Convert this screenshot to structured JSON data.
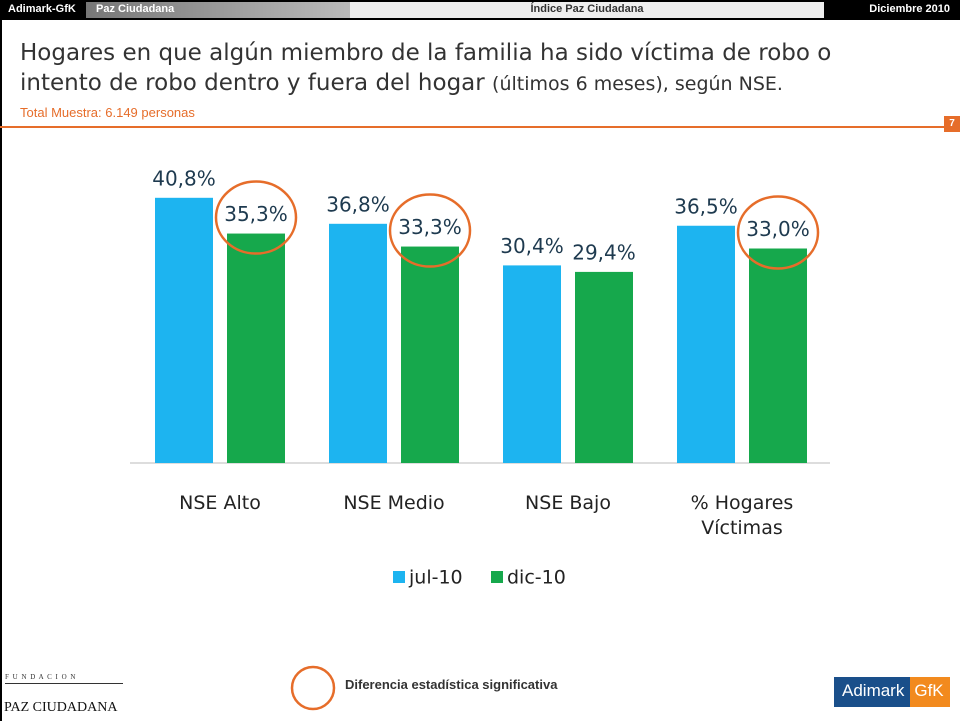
{
  "header": {
    "brand": "Adimark-GfK",
    "section": "Paz Ciudadana",
    "center": "Índice Paz Ciudadana",
    "date": "Diciembre 2010"
  },
  "page_number": "7",
  "chart_data": {
    "type": "bar",
    "title": "Hogares en que algún miembro de la familia ha sido víctima de robo o intento de robo dentro y fuera del hogar",
    "title_note": "(últimos 6 meses), según NSE.",
    "subtitle": "Total Muestra: 6.149 personas",
    "categories": [
      "NSE Alto",
      "NSE Medio",
      "NSE Bajo",
      "% Hogares Víctimas"
    ],
    "series": [
      {
        "name": "jul-10",
        "color": "#1db4f0",
        "values": [
          40.8,
          36.8,
          30.4,
          36.5
        ],
        "value_labels": [
          "40,8%",
          "36,8%",
          "30,4%",
          "36,5%"
        ]
      },
      {
        "name": "dic-10",
        "color": "#16a84c",
        "values": [
          35.3,
          33.3,
          29.4,
          33.0
        ],
        "value_labels": [
          "35,3%",
          "33,3%",
          "29,4%",
          "33,0%"
        ],
        "significant": [
          true,
          true,
          false,
          true
        ]
      }
    ],
    "highlight_color": "#e66d2a",
    "legend": "bottom"
  },
  "footer": {
    "note": "Diferencia estadística significativa",
    "foundation_top": "F U N D A C I O N",
    "foundation_bottom": "PAZ CIUDADANA",
    "logo_left": "Adimark",
    "logo_right": "GfK"
  }
}
